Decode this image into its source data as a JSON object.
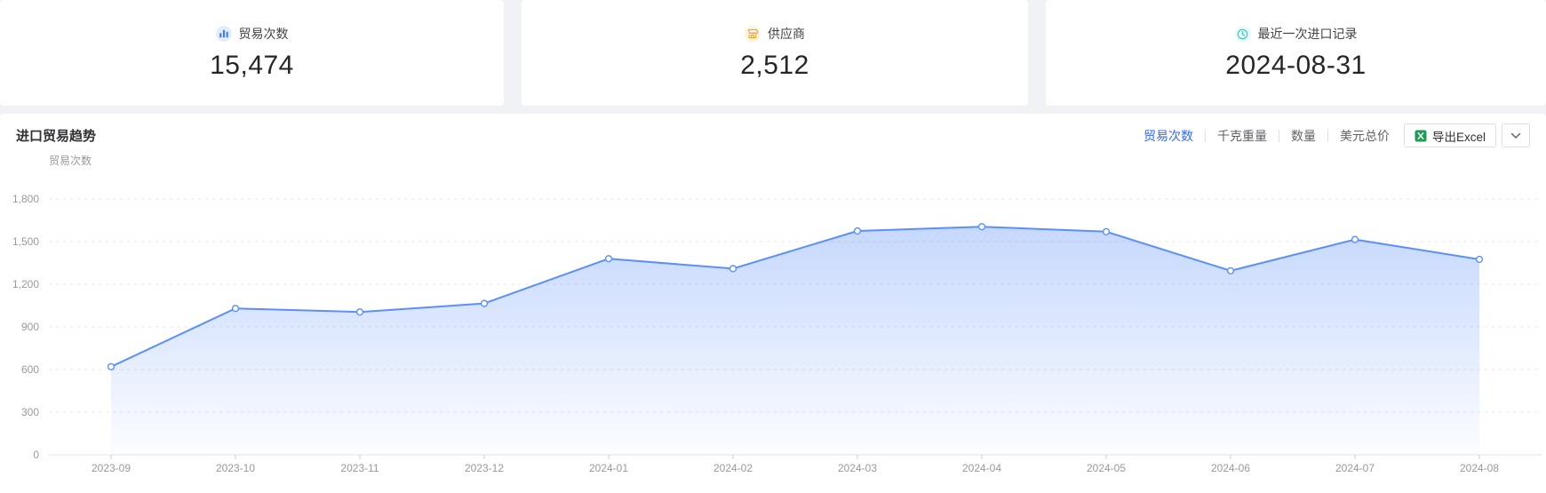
{
  "summary_cards": [
    {
      "label": "贸易次数",
      "value": "15,474",
      "icon": "bar-chart-icon",
      "icon_color": "#3b7cf6",
      "icon_bg": "#e3eefd"
    },
    {
      "label": "供应商",
      "value": "2,512",
      "icon": "supplier-shop-icon",
      "icon_color": "#f5a623",
      "icon_bg": "#fdf3e1"
    },
    {
      "label": "最近一次进口记录",
      "value": "2024-08-31",
      "icon": "clock-icon",
      "icon_color": "#2fc6bf",
      "icon_bg": "#e4fbf9"
    }
  ],
  "trend_section": {
    "title": "进口贸易趋势",
    "tabs": [
      {
        "label": "贸易次数",
        "active": true
      },
      {
        "label": "千克重量",
        "active": false
      },
      {
        "label": "数量",
        "active": false
      },
      {
        "label": "美元总价",
        "active": false
      }
    ],
    "export_button": {
      "label": "导出Excel"
    },
    "accent_color": "#3568f6"
  },
  "chart_data": {
    "type": "area",
    "title": "",
    "ylabel": "贸易次数",
    "xlabel": "",
    "categories": [
      "2023-09",
      "2023-10",
      "2023-11",
      "2023-12",
      "2024-01",
      "2024-02",
      "2024-03",
      "2024-04",
      "2024-05",
      "2024-06",
      "2024-07",
      "2024-08"
    ],
    "values": [
      620,
      1030,
      1005,
      1065,
      1380,
      1310,
      1575,
      1605,
      1570,
      1295,
      1515,
      1375
    ],
    "ylim": [
      0,
      1800
    ],
    "ytick_interval": 300,
    "grid": "horizontal-dashed",
    "legend": "none",
    "line_color": "#5b8ff9",
    "marker": "hollow-circle",
    "area_gradient": [
      "rgba(91,143,249,0.35)",
      "rgba(91,143,249,0.02)"
    ]
  }
}
